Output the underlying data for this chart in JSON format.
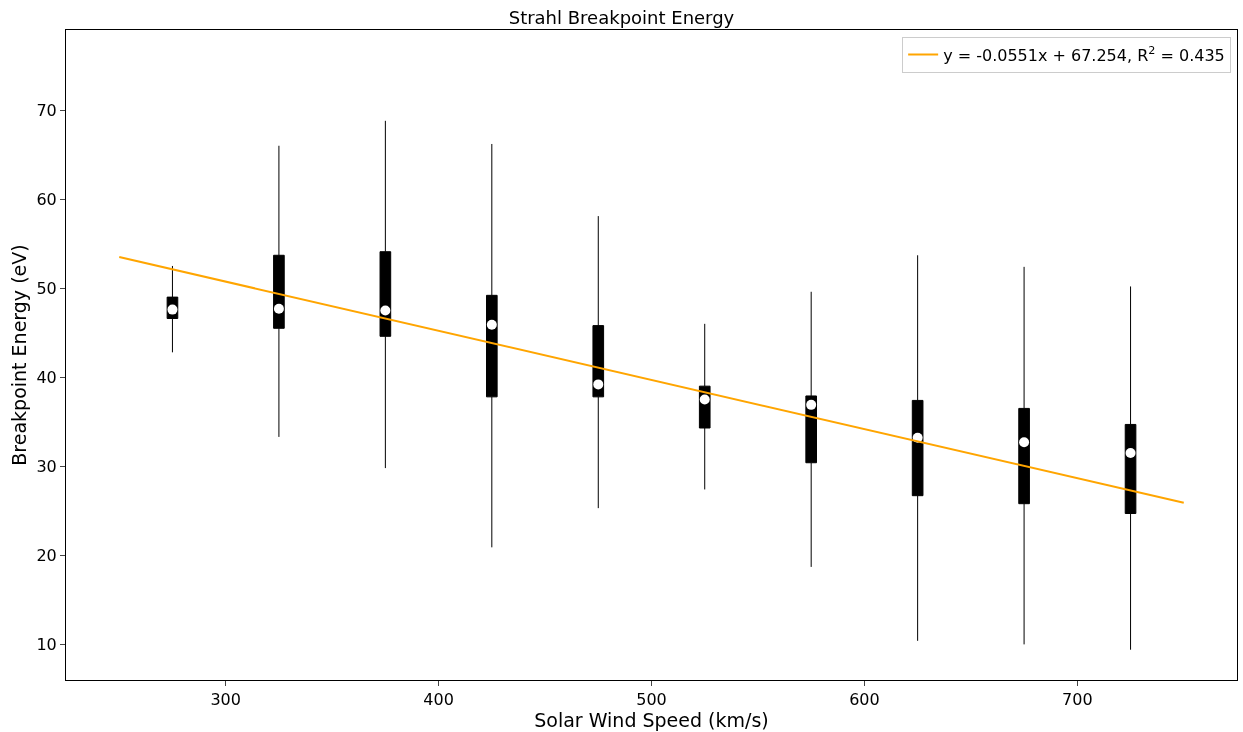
{
  "chart_data": {
    "type": "box",
    "title": "Strahl Breakpoint Energy",
    "xlabel": "Solar Wind Speed (km/s)",
    "ylabel": "Breakpoint Energy (eV)",
    "x": [
      275,
      325,
      375,
      425,
      475,
      525,
      575,
      625,
      675,
      725
    ],
    "color": "#000000",
    "boxes": [
      {
        "low": 42.8,
        "q1": 46.6,
        "median": 47.6,
        "q3": 49.0,
        "high": 52.5
      },
      {
        "low": 33.3,
        "q1": 45.5,
        "median": 47.7,
        "q3": 53.7,
        "high": 66.0
      },
      {
        "low": 29.8,
        "q1": 44.6,
        "median": 47.5,
        "q3": 54.1,
        "high": 68.8
      },
      {
        "low": 20.9,
        "q1": 37.8,
        "median": 45.9,
        "q3": 49.2,
        "high": 66.2
      },
      {
        "low": 25.3,
        "q1": 37.8,
        "median": 39.2,
        "q3": 45.8,
        "high": 58.1
      },
      {
        "low": 27.4,
        "q1": 34.3,
        "median": 37.5,
        "q3": 39.0,
        "high": 46.0
      },
      {
        "low": 18.7,
        "q1": 30.4,
        "median": 36.9,
        "q3": 37.9,
        "high": 49.6
      },
      {
        "low": 10.4,
        "q1": 26.7,
        "median": 33.2,
        "q3": 37.4,
        "high": 53.7
      },
      {
        "low": 10.0,
        "q1": 25.8,
        "median": 32.7,
        "q3": 36.5,
        "high": 52.4
      },
      {
        "low": 9.4,
        "q1": 24.7,
        "median": 31.5,
        "q3": 34.7,
        "high": 50.2
      }
    ],
    "series": [
      {
        "type": "line",
        "name": "y = -0.0551x + 67.254, R$^{2}$ = 0.435",
        "color": "#ffa500",
        "x": [
          250,
          750
        ],
        "values": [
          53.5,
          25.9
        ]
      }
    ],
    "xlim": [
      225,
      775
    ],
    "xticks": [
      300,
      400,
      500,
      600,
      700
    ],
    "ylim": [
      6,
      79
    ],
    "yticks": [
      10,
      20,
      30,
      40,
      50,
      60,
      70
    ],
    "legend": "top right"
  }
}
